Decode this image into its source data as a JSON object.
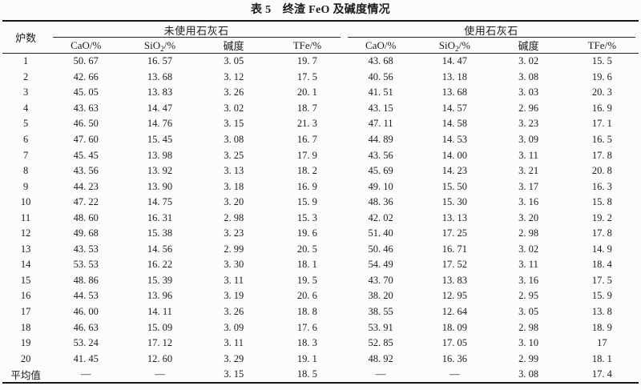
{
  "title": "表 5　终渣 FeO 及碱度情况",
  "table": {
    "furnace_header": "炉数",
    "groups": [
      {
        "label": "未使用石灰石",
        "columns": [
          {
            "text": "CaO/%"
          },
          {
            "pre": "SiO",
            "sub": "2",
            "post": "/%"
          },
          {
            "text": "碱度"
          },
          {
            "text": "TFe/%"
          }
        ]
      },
      {
        "label": "使用石灰石",
        "columns": [
          {
            "text": "CaO/%"
          },
          {
            "pre": "SiO",
            "sub": "2",
            "post": "/%"
          },
          {
            "text": "碱度"
          },
          {
            "text": "TFe/%"
          }
        ]
      }
    ],
    "rows": [
      {
        "furnace": "1",
        "no_lime": [
          "50. 67",
          "16. 57",
          "3. 05",
          "19. 7"
        ],
        "lime": [
          "43. 68",
          "14. 47",
          "3. 02",
          "15. 5"
        ]
      },
      {
        "furnace": "2",
        "no_lime": [
          "42. 66",
          "13. 68",
          "3. 12",
          "17. 5"
        ],
        "lime": [
          "40. 56",
          "13. 18",
          "3. 08",
          "19. 6"
        ]
      },
      {
        "furnace": "3",
        "no_lime": [
          "45. 05",
          "13. 83",
          "3. 26",
          "20. 1"
        ],
        "lime": [
          "41. 51",
          "13. 68",
          "3. 03",
          "20. 3"
        ]
      },
      {
        "furnace": "4",
        "no_lime": [
          "43. 63",
          "14. 47",
          "3. 02",
          "18. 7"
        ],
        "lime": [
          "43. 15",
          "14. 57",
          "2. 96",
          "16. 9"
        ]
      },
      {
        "furnace": "5",
        "no_lime": [
          "46. 50",
          "14. 76",
          "3. 15",
          "21. 3"
        ],
        "lime": [
          "47. 11",
          "14. 58",
          "3. 23",
          "17. 1"
        ]
      },
      {
        "furnace": "6",
        "no_lime": [
          "47. 60",
          "15. 45",
          "3. 08",
          "16. 7"
        ],
        "lime": [
          "44. 89",
          "14. 53",
          "3. 09",
          "16. 5"
        ]
      },
      {
        "furnace": "7",
        "no_lime": [
          "45. 45",
          "13. 98",
          "3. 25",
          "17. 9"
        ],
        "lime": [
          "43. 56",
          "14. 00",
          "3. 11",
          "17. 8"
        ]
      },
      {
        "furnace": "8",
        "no_lime": [
          "43. 56",
          "13. 92",
          "3. 13",
          "18. 2"
        ],
        "lime": [
          "45. 69",
          "14. 23",
          "3. 21",
          "20. 8"
        ]
      },
      {
        "furnace": "9",
        "no_lime": [
          "44. 23",
          "13. 90",
          "3. 18",
          "16. 9"
        ],
        "lime": [
          "49. 10",
          "15. 50",
          "3. 17",
          "16. 3"
        ]
      },
      {
        "furnace": "10",
        "no_lime": [
          "47. 22",
          "14. 75",
          "3. 20",
          "15. 9"
        ],
        "lime": [
          "48. 36",
          "15. 30",
          "3. 16",
          "15. 8"
        ]
      },
      {
        "furnace": "11",
        "no_lime": [
          "48. 60",
          "16. 31",
          "2. 98",
          "15. 3"
        ],
        "lime": [
          "42. 02",
          "13. 13",
          "3. 20",
          "19. 2"
        ]
      },
      {
        "furnace": "12",
        "no_lime": [
          "49. 68",
          "15. 38",
          "3. 23",
          "19. 6"
        ],
        "lime": [
          "51. 40",
          "17. 25",
          "2. 98",
          "17. 8"
        ]
      },
      {
        "furnace": "13",
        "no_lime": [
          "43. 53",
          "14. 56",
          "2. 99",
          "20. 5"
        ],
        "lime": [
          "50. 46",
          "16. 71",
          "3. 02",
          "14. 9"
        ]
      },
      {
        "furnace": "14",
        "no_lime": [
          "53. 53",
          "16. 22",
          "3. 30",
          "18. 1"
        ],
        "lime": [
          "54. 49",
          "17. 52",
          "3. 11",
          "18. 4"
        ]
      },
      {
        "furnace": "15",
        "no_lime": [
          "48. 86",
          "15. 39",
          "3. 11",
          "19. 5"
        ],
        "lime": [
          "43. 70",
          "13. 83",
          "3. 16",
          "17. 5"
        ]
      },
      {
        "furnace": "16",
        "no_lime": [
          "44. 53",
          "13. 96",
          "3. 19",
          "20. 6"
        ],
        "lime": [
          "38. 20",
          "12. 95",
          "2. 95",
          "15. 9"
        ]
      },
      {
        "furnace": "17",
        "no_lime": [
          "46. 00",
          "14. 11",
          "3. 26",
          "18. 8"
        ],
        "lime": [
          "38. 55",
          "12. 64",
          "3. 05",
          "13. 8"
        ]
      },
      {
        "furnace": "18",
        "no_lime": [
          "46. 63",
          "15. 09",
          "3. 09",
          "17. 6"
        ],
        "lime": [
          "53. 91",
          "18. 09",
          "2. 98",
          "18. 9"
        ]
      },
      {
        "furnace": "19",
        "no_lime": [
          "53. 24",
          "17. 12",
          "3. 11",
          "18. 3"
        ],
        "lime": [
          "52. 85",
          "17. 05",
          "3. 10",
          "17"
        ]
      },
      {
        "furnace": "20",
        "no_lime": [
          "41. 45",
          "12. 60",
          "3. 29",
          "19. 1"
        ],
        "lime": [
          "48. 92",
          "16. 36",
          "2. 99",
          "18. 1"
        ]
      },
      {
        "furnace": "平均值",
        "no_lime": [
          "—",
          "—",
          "3. 15",
          "18. 5"
        ],
        "lime": [
          "—",
          "—",
          "3. 08",
          "17. 4"
        ]
      }
    ]
  }
}
